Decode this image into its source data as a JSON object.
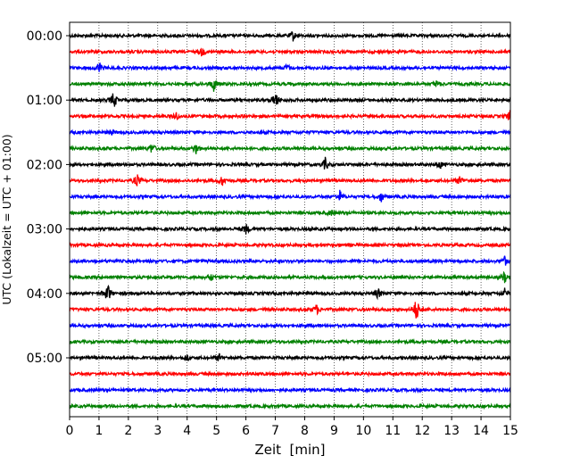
{
  "chart_data": {
    "type": "line",
    "title": "",
    "xlabel": "Zeit  [min]",
    "ylabel": "UTC (Lokalzeit = UTC + 01:00)",
    "xlim": [
      0,
      15
    ],
    "x_ticks": [
      0,
      1,
      2,
      3,
      4,
      5,
      6,
      7,
      8,
      9,
      10,
      11,
      12,
      13,
      14,
      15
    ],
    "y_tick_labels": [
      "00:00",
      "01:00",
      "02:00",
      "03:00",
      "04:00",
      "05:00"
    ],
    "trace_interval_minutes": 15,
    "trace_count": 24,
    "trace_colors": [
      "#000000",
      "#ff0000",
      "#0000ff",
      "#008000"
    ],
    "grid": "vertical dotted lines at each minute",
    "events": [
      {
        "trace": 0,
        "minute": 7.6,
        "amplitude": 0.4
      },
      {
        "trace": 1,
        "minute": 4.5,
        "amplitude": 0.3
      },
      {
        "trace": 2,
        "minute": 1.0,
        "amplitude": 0.5
      },
      {
        "trace": 2,
        "minute": 7.4,
        "amplitude": 0.3
      },
      {
        "trace": 3,
        "minute": 4.9,
        "amplitude": 0.6
      },
      {
        "trace": 3,
        "minute": 12.5,
        "amplitude": 0.3
      },
      {
        "trace": 4,
        "minute": 1.5,
        "amplitude": 0.7
      },
      {
        "trace": 4,
        "minute": 7.0,
        "amplitude": 0.7
      },
      {
        "trace": 5,
        "minute": 3.6,
        "amplitude": 0.4
      },
      {
        "trace": 5,
        "minute": 15.0,
        "amplitude": 0.5
      },
      {
        "trace": 6,
        "minute": 1.4,
        "amplitude": 0.2
      },
      {
        "trace": 7,
        "minute": 2.8,
        "amplitude": 0.4
      },
      {
        "trace": 7,
        "minute": 4.3,
        "amplitude": 0.4
      },
      {
        "trace": 8,
        "minute": 8.7,
        "amplitude": 0.5
      },
      {
        "trace": 8,
        "minute": 12.6,
        "amplitude": 0.3
      },
      {
        "trace": 9,
        "minute": 2.3,
        "amplitude": 0.5
      },
      {
        "trace": 9,
        "minute": 5.2,
        "amplitude": 0.4
      },
      {
        "trace": 9,
        "minute": 13.3,
        "amplitude": 0.4
      },
      {
        "trace": 10,
        "minute": 9.2,
        "amplitude": 0.5
      },
      {
        "trace": 10,
        "minute": 10.6,
        "amplitude": 0.4
      },
      {
        "trace": 11,
        "minute": 8.9,
        "amplitude": 0.2
      },
      {
        "trace": 12,
        "minute": 6.0,
        "amplitude": 0.4
      },
      {
        "trace": 14,
        "minute": 14.8,
        "amplitude": 0.4
      },
      {
        "trace": 15,
        "minute": 4.8,
        "amplitude": 0.3
      },
      {
        "trace": 15,
        "minute": 14.8,
        "amplitude": 0.4
      },
      {
        "trace": 16,
        "minute": 1.3,
        "amplitude": 0.8
      },
      {
        "trace": 16,
        "minute": 10.5,
        "amplitude": 0.4
      },
      {
        "trace": 16,
        "minute": 14.8,
        "amplitude": 0.4
      },
      {
        "trace": 17,
        "minute": 8.4,
        "amplitude": 0.4
      },
      {
        "trace": 17,
        "minute": 11.8,
        "amplitude": 1.0
      },
      {
        "trace": 20,
        "minute": 4.0,
        "amplitude": 0.3
      },
      {
        "trace": 20,
        "minute": 5.1,
        "amplitude": 0.3
      }
    ]
  }
}
